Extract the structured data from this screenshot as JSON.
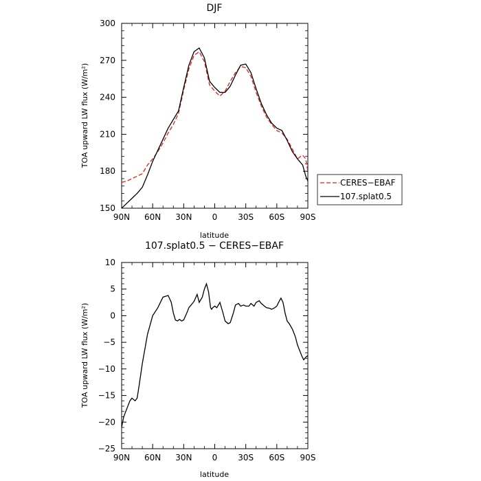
{
  "chart_data": [
    {
      "type": "line",
      "title": "DJF",
      "xlabel": "latitude",
      "ylabel": "TOA upward LW flux (W/m²)",
      "xlim": [
        90,
        -90
      ],
      "ylim": [
        150,
        300
      ],
      "xticks": [
        90,
        60,
        30,
        0,
        -30,
        -60,
        -90
      ],
      "xtick_labels": [
        "90N",
        "60N",
        "30N",
        "0",
        "30S",
        "60S",
        "90S"
      ],
      "yticks": [
        150,
        180,
        210,
        240,
        270,
        300
      ],
      "ytick_labels": [
        "150",
        "180",
        "210",
        "240",
        "270",
        "300"
      ],
      "legend_position": "right",
      "series": [
        {
          "name": "CERES−EBAF",
          "color": "#e0201b",
          "dash": "dashed",
          "x": [
            90,
            85,
            80,
            75,
            70,
            65,
            60,
            55,
            50,
            45,
            40,
            35,
            30,
            25,
            20,
            15,
            10,
            5,
            0,
            -5,
            -10,
            -15,
            -20,
            -25,
            -30,
            -35,
            -40,
            -45,
            -50,
            -55,
            -60,
            -65,
            -70,
            -75,
            -80,
            -83,
            -85,
            -88,
            -90
          ],
          "y": [
            171,
            172,
            174,
            176,
            178,
            185,
            190,
            196,
            203,
            211,
            218,
            227,
            246,
            263,
            274,
            277,
            269,
            250,
            245,
            241,
            245,
            253,
            260,
            265,
            264,
            257,
            244,
            233,
            224,
            218,
            213,
            211,
            206,
            198,
            190,
            192,
            193,
            190,
            180
          ]
        },
        {
          "name": "107.splat0.5",
          "color": "#000000",
          "dash": "solid",
          "x": [
            90,
            85,
            80,
            75,
            70,
            65,
            60,
            55,
            50,
            45,
            40,
            35,
            30,
            25,
            20,
            15,
            10,
            5,
            0,
            -5,
            -10,
            -15,
            -20,
            -25,
            -30,
            -35,
            -40,
            -45,
            -50,
            -55,
            -60,
            -65,
            -70,
            -75,
            -80,
            -85,
            -88,
            -90
          ],
          "y": [
            150,
            154,
            158,
            162,
            167,
            177,
            188,
            197,
            206,
            215,
            222,
            229,
            248,
            266,
            277,
            280,
            272,
            253,
            248,
            244,
            244,
            249,
            258,
            266,
            267,
            260,
            247,
            235,
            226,
            219,
            215,
            213,
            205,
            196,
            190,
            185,
            176,
            172
          ]
        }
      ]
    },
    {
      "type": "line",
      "title": "107.splat0.5 − CERES−EBAF",
      "xlabel": "latitude",
      "ylabel": "TOA upward LW flux (W/m²)",
      "xlim": [
        90,
        -90
      ],
      "ylim": [
        -25,
        10
      ],
      "xticks": [
        90,
        60,
        30,
        0,
        -30,
        -60,
        -90
      ],
      "xtick_labels": [
        "90N",
        "60N",
        "30N",
        "0",
        "30S",
        "60S",
        "90S"
      ],
      "yticks": [
        -25,
        -20,
        -15,
        -10,
        -5,
        0,
        5,
        10
      ],
      "ytick_labels": [
        "−25",
        "−20",
        "−15",
        "−10",
        "−5",
        "0",
        "5",
        "10"
      ],
      "series": [
        {
          "color": "#000000",
          "dash": "solid",
          "x": [
            90,
            88,
            85,
            82,
            80,
            77,
            75,
            73,
            70,
            65,
            60,
            55,
            50,
            45,
            42,
            40,
            38,
            36,
            34,
            32,
            30,
            27,
            25,
            22,
            20,
            17,
            15,
            12,
            10,
            8,
            6,
            5,
            4,
            3,
            2,
            0,
            -2,
            -5,
            -8,
            -10,
            -13,
            -15,
            -18,
            -20,
            -23,
            -25,
            -28,
            -30,
            -33,
            -35,
            -38,
            -40,
            -43,
            -45,
            -48,
            -50,
            -53,
            -55,
            -58,
            -60,
            -62,
            -64,
            -66,
            -68,
            -70,
            -72,
            -75,
            -78,
            -80,
            -82,
            -84,
            -86,
            -88,
            -90
          ],
          "y": [
            -21,
            -19,
            -17.5,
            -16,
            -15.5,
            -16,
            -15.5,
            -13,
            -9,
            -3.5,
            0,
            1.5,
            3.5,
            3.8,
            2.5,
            0.5,
            -0.8,
            -1,
            -0.7,
            -1,
            -0.8,
            0.5,
            1.5,
            2.2,
            2.7,
            4,
            2.5,
            3.5,
            5,
            6,
            4.5,
            3,
            1.5,
            1.2,
            1.5,
            1.8,
            1.5,
            2.5,
            0.5,
            -1,
            -1.5,
            -1.3,
            0.5,
            2,
            2.3,
            1.8,
            2,
            1.8,
            1.8,
            2.3,
            1.8,
            2.5,
            2.8,
            2.3,
            1.8,
            1.5,
            1.4,
            1.2,
            1.5,
            1.8,
            2.6,
            3.3,
            2.5,
            0.5,
            -1,
            -1.5,
            -2.5,
            -4,
            -5.5,
            -6.5,
            -7.5,
            -8.3,
            -7.8,
            -7.5
          ]
        }
      ]
    }
  ]
}
